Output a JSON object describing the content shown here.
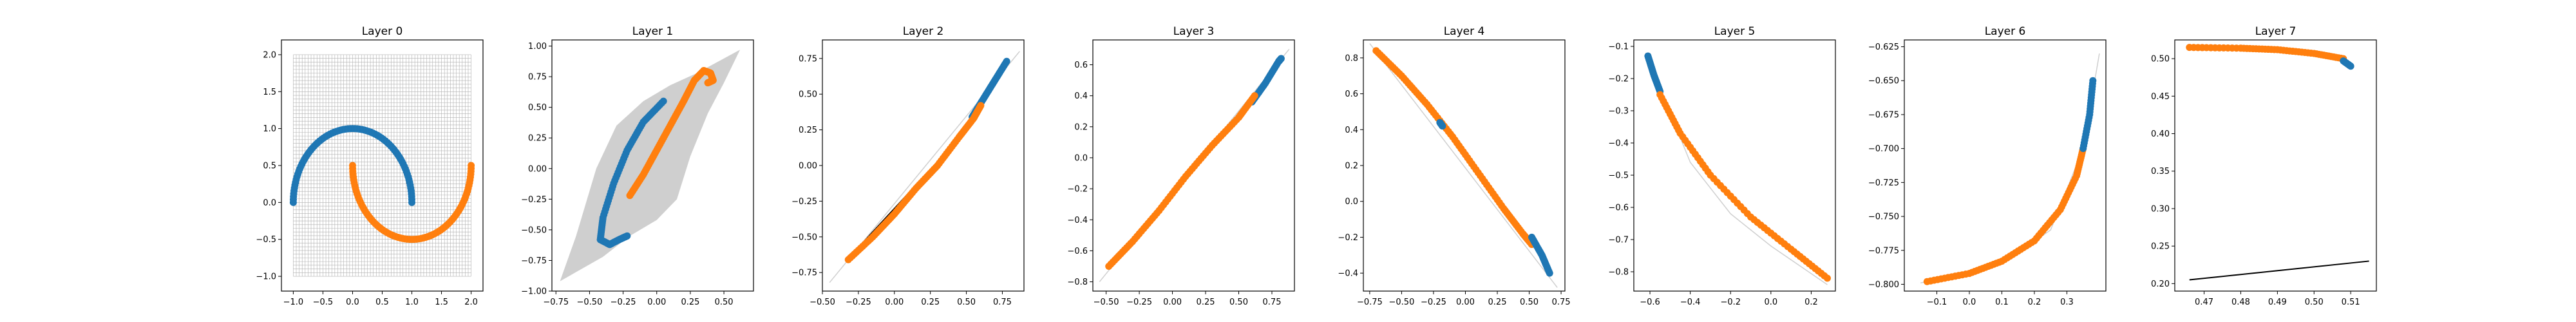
{
  "colors": {
    "blue": "#1f77b4",
    "orange": "#ff7f0e",
    "grid": "#b0b0b0",
    "band": "#cfcfcf",
    "line": "#000000"
  },
  "chart_data": [
    {
      "type": "scatter",
      "title": "Layer 0",
      "xlim": [
        -1.2,
        2.2
      ],
      "ylim": [
        -1.2,
        2.2
      ],
      "xticks": [
        -1.0,
        -0.5,
        0.0,
        0.5,
        1.0,
        1.5,
        2.0
      ],
      "yticks": [
        -1.0,
        -0.5,
        0.0,
        0.5,
        1.0,
        1.5,
        2.0
      ],
      "background_grid": {
        "range": [
          -1.0,
          2.0
        ],
        "lines": 61
      },
      "series": [
        {
          "color": "blue",
          "kind": "arc",
          "cx": 0,
          "cy": 0,
          "r": 1,
          "from_deg": 0,
          "to_deg": 180
        },
        {
          "color": "orange",
          "kind": "arc",
          "cx": 1,
          "cy": 0.5,
          "r": 1,
          "from_deg": 180,
          "to_deg": 360
        }
      ]
    },
    {
      "type": "scatter",
      "title": "Layer 1",
      "xlim": [
        -0.78,
        0.72
      ],
      "ylim": [
        -1.0,
        1.05
      ],
      "xticks": [
        -0.75,
        -0.5,
        -0.25,
        0.0,
        0.25,
        0.5
      ],
      "yticks": [
        -1.0,
        -0.75,
        -0.5,
        -0.25,
        0.0,
        0.25,
        0.5,
        0.75,
        1.0
      ],
      "band": [
        [
          -0.72,
          -0.92
        ],
        [
          -0.6,
          -0.55
        ],
        [
          -0.45,
          0.0
        ],
        [
          -0.3,
          0.35
        ],
        [
          -0.1,
          0.55
        ],
        [
          0.1,
          0.68
        ],
        [
          0.3,
          0.78
        ],
        [
          0.62,
          0.97
        ],
        [
          0.5,
          0.7
        ],
        [
          0.38,
          0.45
        ],
        [
          0.25,
          0.1
        ],
        [
          0.15,
          -0.25
        ],
        [
          0.0,
          -0.42
        ],
        [
          -0.2,
          -0.55
        ],
        [
          -0.4,
          -0.72
        ]
      ],
      "series": [
        {
          "color": "blue",
          "kind": "polyline",
          "points": [
            [
              0.05,
              0.55
            ],
            [
              -0.1,
              0.38
            ],
            [
              -0.22,
              0.15
            ],
            [
              -0.32,
              -0.12
            ],
            [
              -0.4,
              -0.4
            ],
            [
              -0.42,
              -0.58
            ],
            [
              -0.35,
              -0.62
            ],
            [
              -0.28,
              -0.58
            ],
            [
              -0.22,
              -0.55
            ]
          ]
        },
        {
          "color": "orange",
          "kind": "polyline",
          "points": [
            [
              -0.2,
              -0.22
            ],
            [
              -0.1,
              -0.05
            ],
            [
              0.0,
              0.15
            ],
            [
              0.1,
              0.35
            ],
            [
              0.2,
              0.55
            ],
            [
              0.28,
              0.72
            ],
            [
              0.35,
              0.8
            ],
            [
              0.4,
              0.78
            ],
            [
              0.42,
              0.72
            ],
            [
              0.38,
              0.7
            ]
          ]
        }
      ]
    },
    {
      "type": "scatter",
      "title": "Layer 2",
      "xlim": [
        -0.5,
        0.9
      ],
      "ylim": [
        -0.88,
        0.88
      ],
      "xticks": [
        -0.5,
        -0.25,
        0.0,
        0.25,
        0.5,
        0.75
      ],
      "yticks": [
        -0.75,
        -0.5,
        -0.25,
        0.0,
        0.25,
        0.5,
        0.75
      ],
      "lines": [
        {
          "color": "band",
          "points": [
            [
              -0.45,
              -0.82
            ],
            [
              0.87,
              0.8
            ]
          ]
        },
        {
          "color": "line",
          "points": [
            [
              -0.2,
              -0.52
            ],
            [
              0.55,
              0.3
            ]
          ]
        }
      ],
      "series": [
        {
          "color": "blue",
          "kind": "polyline",
          "points": [
            [
              0.54,
              0.34
            ],
            [
              0.62,
              0.47
            ],
            [
              0.7,
              0.6
            ],
            [
              0.78,
              0.73
            ]
          ]
        },
        {
          "color": "orange",
          "kind": "polyline",
          "points": [
            [
              -0.32,
              -0.66
            ],
            [
              -0.15,
              -0.5
            ],
            [
              0.0,
              -0.34
            ],
            [
              0.15,
              -0.16
            ],
            [
              0.3,
              0.0
            ],
            [
              0.45,
              0.2
            ],
            [
              0.55,
              0.33
            ],
            [
              0.6,
              0.42
            ]
          ]
        }
      ]
    },
    {
      "type": "scatter",
      "title": "Layer 3",
      "xlim": [
        -0.6,
        0.92
      ],
      "ylim": [
        -0.86,
        0.76
      ],
      "xticks": [
        -0.5,
        -0.25,
        0.0,
        0.25,
        0.5,
        0.75
      ],
      "yticks": [
        -0.8,
        -0.6,
        -0.4,
        -0.2,
        0.0,
        0.2,
        0.4,
        0.6
      ],
      "lines": [
        {
          "color": "band",
          "points": [
            [
              -0.55,
              -0.8
            ],
            [
              0.88,
              0.7
            ]
          ]
        }
      ],
      "series": [
        {
          "color": "blue",
          "kind": "polyline",
          "points": [
            [
              0.6,
              0.36
            ],
            [
              0.7,
              0.48
            ],
            [
              0.8,
              0.62
            ],
            [
              0.82,
              0.64
            ]
          ]
        },
        {
          "color": "orange",
          "kind": "polyline",
          "points": [
            [
              -0.48,
              -0.7
            ],
            [
              -0.3,
              -0.54
            ],
            [
              -0.1,
              -0.34
            ],
            [
              0.1,
              -0.12
            ],
            [
              0.3,
              0.08
            ],
            [
              0.5,
              0.26
            ],
            [
              0.62,
              0.4
            ]
          ]
        }
      ]
    },
    {
      "type": "scatter",
      "title": "Layer 4",
      "xlim": [
        -0.8,
        0.78
      ],
      "ylim": [
        -0.5,
        0.9
      ],
      "xticks": [
        -0.75,
        -0.5,
        -0.25,
        0.0,
        0.25,
        0.5,
        0.75
      ],
      "yticks": [
        -0.4,
        -0.2,
        0.0,
        0.2,
        0.4,
        0.6,
        0.8
      ],
      "lines": [
        {
          "color": "band",
          "points": [
            [
              -0.75,
              0.88
            ],
            [
              0.72,
              -0.48
            ]
          ]
        }
      ],
      "series": [
        {
          "color": "orange",
          "kind": "polyline",
          "points": [
            [
              -0.7,
              0.84
            ],
            [
              -0.5,
              0.7
            ],
            [
              -0.3,
              0.54
            ],
            [
              -0.1,
              0.36
            ],
            [
              0.1,
              0.16
            ],
            [
              0.3,
              -0.04
            ],
            [
              0.45,
              -0.18
            ],
            [
              0.52,
              -0.24
            ]
          ]
        },
        {
          "color": "blue",
          "kind": "polyline",
          "points": [
            [
              -0.2,
              0.44
            ],
            [
              -0.18,
              0.42
            ]
          ]
        },
        {
          "color": "blue",
          "kind": "polyline",
          "points": [
            [
              0.52,
              -0.2
            ],
            [
              0.6,
              -0.3
            ],
            [
              0.66,
              -0.4
            ]
          ]
        }
      ]
    },
    {
      "type": "scatter",
      "title": "Layer 5",
      "xlim": [
        -0.68,
        0.32
      ],
      "ylim": [
        -0.86,
        -0.08
      ],
      "xticks": [
        -0.6,
        -0.4,
        -0.2,
        0.0,
        0.2
      ],
      "yticks": [
        -0.8,
        -0.7,
        -0.6,
        -0.5,
        -0.4,
        -0.3,
        -0.2,
        -0.1
      ],
      "lines": [
        {
          "color": "band",
          "points": [
            [
              -0.62,
              -0.12
            ],
            [
              -0.4,
              -0.46
            ],
            [
              -0.2,
              -0.62
            ],
            [
              0.0,
              -0.72
            ],
            [
              0.28,
              -0.84
            ]
          ]
        }
      ],
      "series": [
        {
          "color": "blue",
          "kind": "polyline",
          "points": [
            [
              -0.61,
              -0.13
            ],
            [
              -0.58,
              -0.19
            ],
            [
              -0.55,
              -0.24
            ]
          ]
        },
        {
          "color": "orange",
          "kind": "polyline",
          "points": [
            [
              -0.55,
              -0.25
            ],
            [
              -0.45,
              -0.37
            ],
            [
              -0.3,
              -0.5
            ],
            [
              -0.1,
              -0.63
            ],
            [
              0.1,
              -0.73
            ],
            [
              0.28,
              -0.82
            ]
          ]
        }
      ]
    },
    {
      "type": "scatter",
      "title": "Layer 6",
      "xlim": [
        -0.2,
        0.42
      ],
      "ylim": [
        -0.805,
        -0.62
      ],
      "xticks": [
        -0.1,
        0.0,
        0.1,
        0.2,
        0.3
      ],
      "yticks": [
        -0.8,
        -0.775,
        -0.75,
        -0.725,
        -0.7,
        -0.675,
        -0.65,
        -0.625
      ],
      "lines": [
        {
          "color": "band",
          "points": [
            [
              -0.15,
              -0.799
            ],
            [
              0.1,
              -0.785
            ],
            [
              0.25,
              -0.76
            ],
            [
              0.35,
              -0.7
            ],
            [
              0.4,
              -0.63
            ]
          ]
        }
      ],
      "series": [
        {
          "color": "orange",
          "kind": "polyline",
          "points": [
            [
              -0.13,
              -0.798
            ],
            [
              0.0,
              -0.792
            ],
            [
              0.1,
              -0.783
            ],
            [
              0.2,
              -0.768
            ],
            [
              0.28,
              -0.745
            ],
            [
              0.33,
              -0.72
            ],
            [
              0.35,
              -0.7
            ]
          ]
        },
        {
          "color": "blue",
          "kind": "polyline",
          "points": [
            [
              0.35,
              -0.7
            ],
            [
              0.37,
              -0.675
            ],
            [
              0.38,
              -0.65
            ]
          ]
        }
      ]
    },
    {
      "type": "scatter",
      "title": "Layer 7",
      "xlim": [
        0.462,
        0.517
      ],
      "ylim": [
        0.19,
        0.525
      ],
      "xticks": [
        0.47,
        0.48,
        0.49,
        0.5,
        0.51
      ],
      "yticks": [
        0.2,
        0.25,
        0.3,
        0.35,
        0.4,
        0.45,
        0.5
      ],
      "lines": [
        {
          "color": "line",
          "points": [
            [
              0.466,
              0.205
            ],
            [
              0.515,
              0.23
            ]
          ]
        }
      ],
      "series": [
        {
          "color": "orange",
          "kind": "polyline",
          "points": [
            [
              0.466,
              0.515
            ],
            [
              0.48,
              0.514
            ],
            [
              0.49,
              0.512
            ],
            [
              0.5,
              0.507
            ],
            [
              0.508,
              0.5
            ]
          ]
        },
        {
          "color": "blue",
          "kind": "polyline",
          "points": [
            [
              0.508,
              0.497
            ],
            [
              0.51,
              0.49
            ]
          ]
        }
      ]
    }
  ]
}
